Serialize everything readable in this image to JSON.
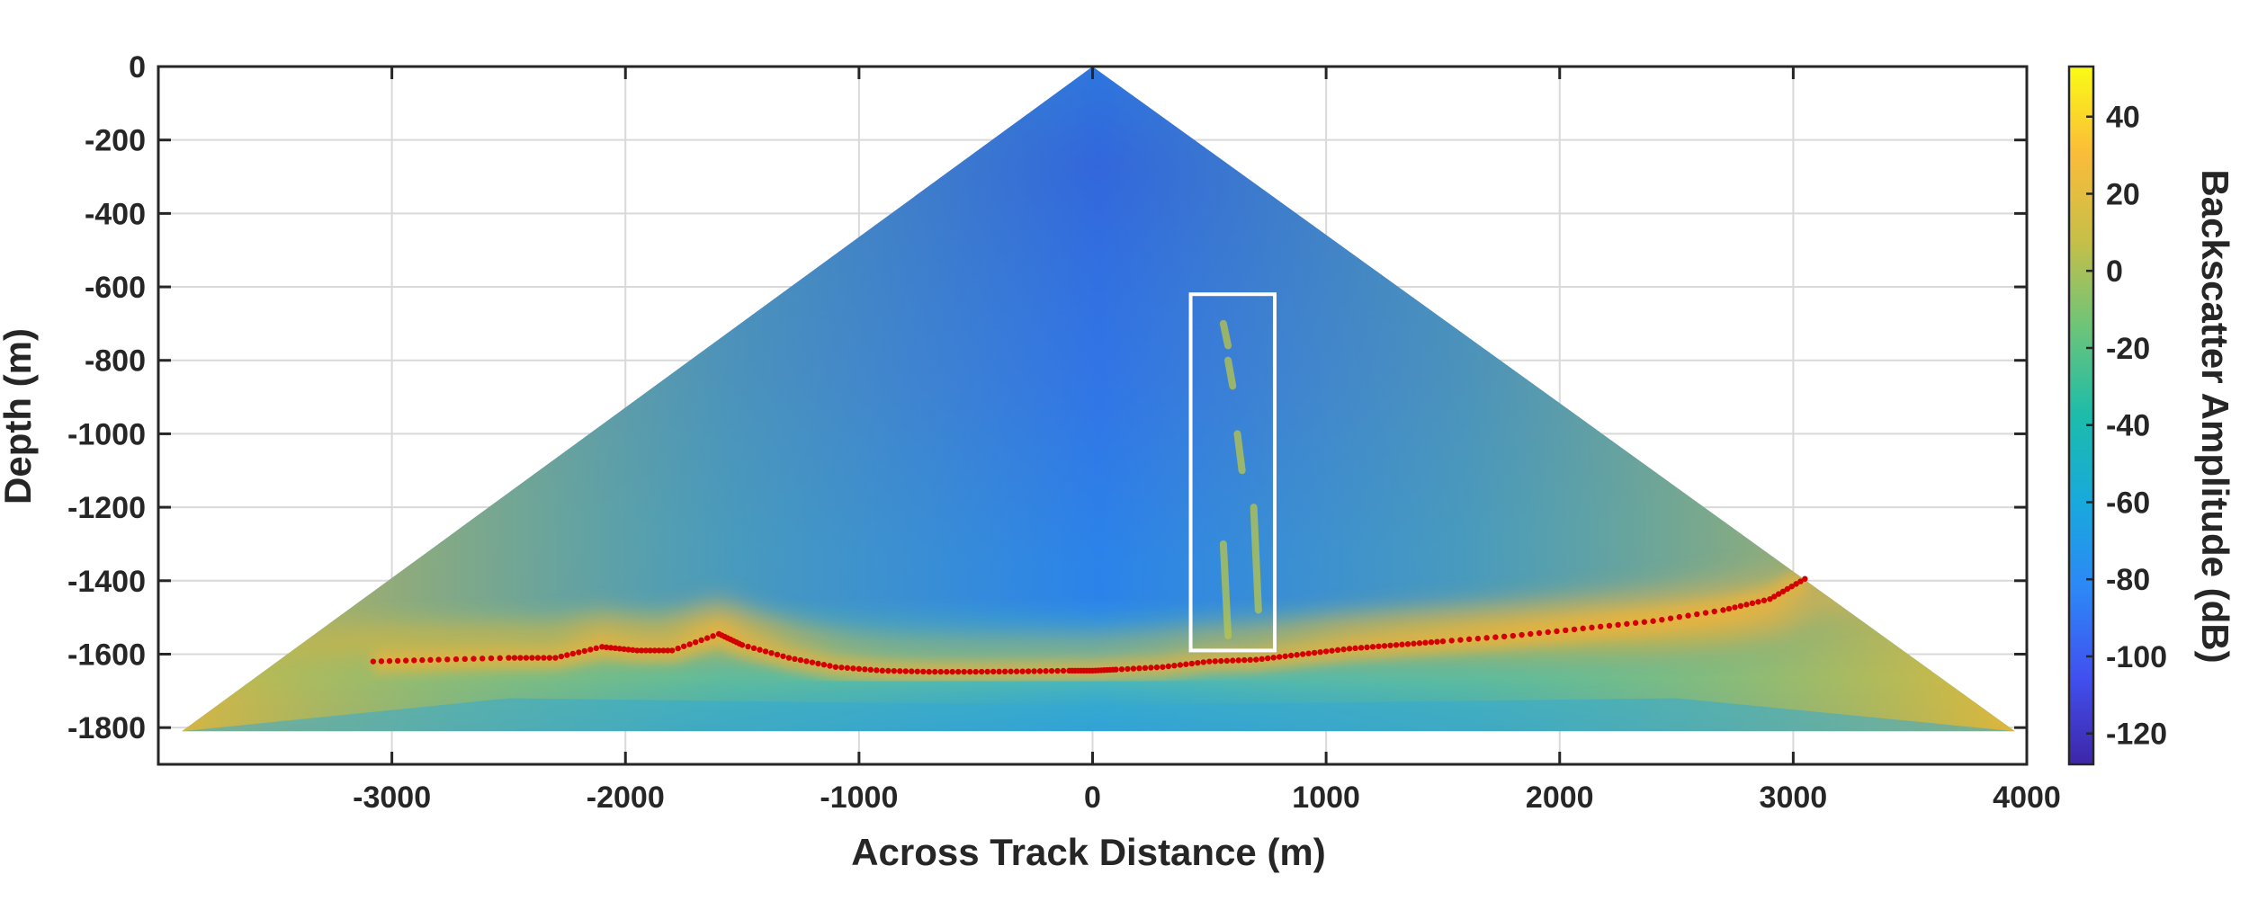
{
  "chart_data": {
    "type": "heatmap",
    "title": "",
    "xlabel": "Across Track Distance (m)",
    "ylabel": "Depth (m)",
    "xlim": [
      -4000,
      4000
    ],
    "ylim": [
      -1900,
      0
    ],
    "xticks": [
      -3000,
      -2000,
      -1000,
      0,
      1000,
      2000,
      3000,
      4000
    ],
    "yticks": [
      0,
      -200,
      -400,
      -600,
      -800,
      -1000,
      -1200,
      -1400,
      -1600,
      -1800
    ],
    "grid": true,
    "fan": {
      "apex": [
        0,
        0
      ],
      "left_edge": [
        -3900,
        -1810
      ],
      "right_edge": [
        3950,
        -1810
      ]
    },
    "colorbar": {
      "label": "Backscatter Amplitude (dB)",
      "range": [
        -128,
        53
      ],
      "ticks": [
        40,
        20,
        0,
        -20,
        -40,
        -60,
        -80,
        -100,
        -120
      ],
      "colormap": "parula"
    },
    "highlight_box": {
      "x": [
        420,
        780
      ],
      "y": [
        -620,
        -1590
      ],
      "color": "#ffffff"
    },
    "seafloor_pick": {
      "color": "#d40000",
      "x": [
        -3080,
        -2800,
        -2500,
        -2300,
        -2100,
        -1950,
        -1800,
        -1600,
        -1500,
        -1300,
        -1100,
        -900,
        -700,
        -500,
        -300,
        -100,
        0,
        100,
        300,
        500,
        700,
        900,
        1100,
        1300,
        1500,
        1800,
        2100,
        2400,
        2700,
        2900,
        3050
      ],
      "y": [
        -1620,
        -1615,
        -1610,
        -1610,
        -1580,
        -1590,
        -1590,
        -1545,
        -1575,
        -1610,
        -1635,
        -1645,
        -1648,
        -1648,
        -1647,
        -1645,
        -1645,
        -1642,
        -1635,
        -1620,
        -1615,
        -1600,
        -1585,
        -1575,
        -1565,
        -1550,
        -1530,
        -1510,
        -1480,
        -1450,
        -1395
      ]
    }
  }
}
